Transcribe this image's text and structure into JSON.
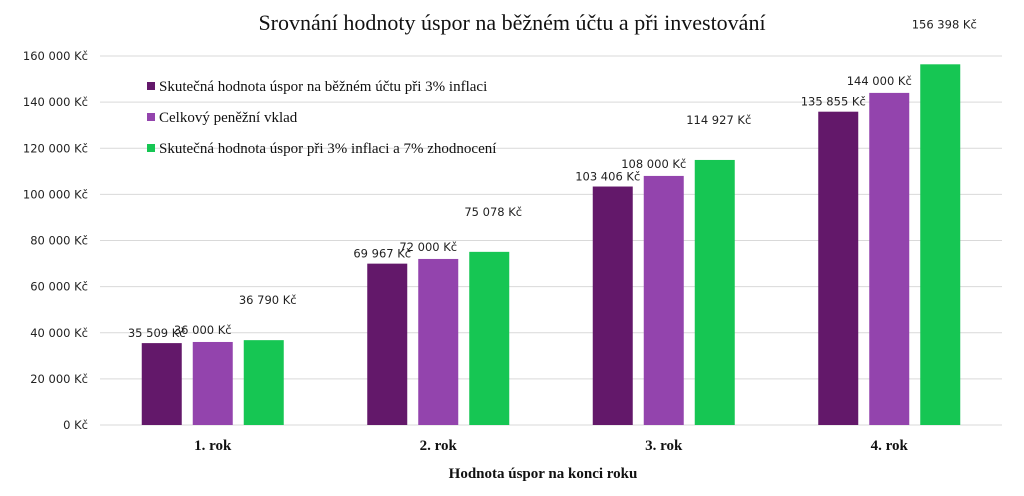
{
  "chart_data": {
    "type": "bar",
    "title": "Srovnání hodnoty úspor na běžném účtu a při investování",
    "xlabel": "Hodnota úspor na konci roku",
    "ylabel": "",
    "categories": [
      "1. rok",
      "2. rok",
      "3. rok",
      "4. rok"
    ],
    "ylim": [
      0,
      160000
    ],
    "ytick_values": [
      0,
      20000,
      40000,
      60000,
      80000,
      100000,
      120000,
      140000,
      160000
    ],
    "ytick_labels": [
      "0 Kč",
      "20 000 Kč",
      "40 000 Kč",
      "60 000 Kč",
      "80 000 Kč",
      "100 000 Kč",
      "120 000 Kč",
      "140 000 Kč",
      "160 000 Kč"
    ],
    "grid": true,
    "legend_position": "top-left",
    "series": [
      {
        "name": "Skutečná hodnota úspor na běžném účtu při 3% inflaci",
        "color": "#63186a",
        "values": [
          35509,
          69967,
          103406,
          135855
        ],
        "labels": [
          "35 509 Kč",
          "69 967 Kč",
          "103 406 Kč",
          "135 855 Kč"
        ]
      },
      {
        "name": "Celkový peněžní vklad",
        "color": "#9344ad",
        "values": [
          36000,
          72000,
          108000,
          144000
        ],
        "labels": [
          "36 000 Kč",
          "72 000 Kč",
          "108 000 Kč",
          "144 000 Kč"
        ]
      },
      {
        "name": "Skutečná hodnota úspor při 3% inflaci a 7% zhodnocení",
        "color": "#16c653",
        "values": [
          36790,
          75078,
          114927,
          156398
        ],
        "labels": [
          "36 790 Kč",
          "75 078 Kč",
          "114 927 Kč",
          "156 398 Kč"
        ]
      }
    ]
  }
}
